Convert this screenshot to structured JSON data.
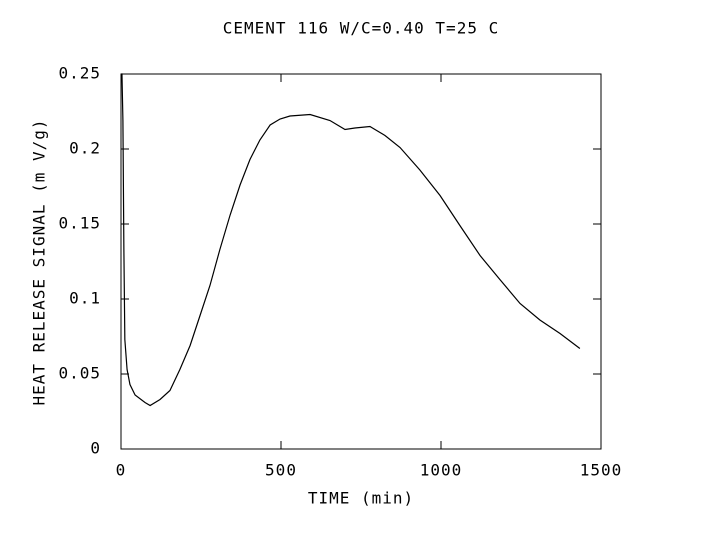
{
  "chart_data": {
    "type": "line",
    "title": "CEMENT 116 W/C=0.40  T=25 C",
    "x_label": "TIME (min)",
    "y_label": "HEAT RELEASE SIGNAL (m V/g)",
    "x": [
      1,
      3,
      6,
      9,
      12,
      19,
      28,
      44,
      75,
      91,
      122,
      153,
      184,
      216,
      247,
      278,
      309,
      341,
      372,
      403,
      434,
      466,
      497,
      528,
      591,
      653,
      700,
      731,
      778,
      825,
      872,
      934,
      997,
      1059,
      1122,
      1184,
      1247,
      1309,
      1372,
      1434
    ],
    "series": [
      {
        "color": "#000000",
        "values": [
          0.25,
          0.25,
          0.219,
          0.133,
          0.073,
          0.053,
          0.043,
          0.036,
          0.031,
          0.029,
          0.033,
          0.039,
          0.053,
          0.069,
          0.089,
          0.109,
          0.133,
          0.156,
          0.176,
          0.193,
          0.206,
          0.216,
          0.22,
          0.222,
          0.223,
          0.219,
          0.213,
          0.214,
          0.215,
          0.209,
          0.201,
          0.186,
          0.169,
          0.149,
          0.129,
          0.113,
          0.097,
          0.086,
          0.077,
          0.067
        ]
      }
    ],
    "xlim": [
      0,
      1500
    ],
    "xticks": [
      0,
      500,
      1000,
      1500
    ],
    "ylim": [
      0,
      0.25
    ],
    "yticks": [
      0,
      0.05,
      0.1,
      0.15,
      0.2,
      0.25
    ]
  }
}
